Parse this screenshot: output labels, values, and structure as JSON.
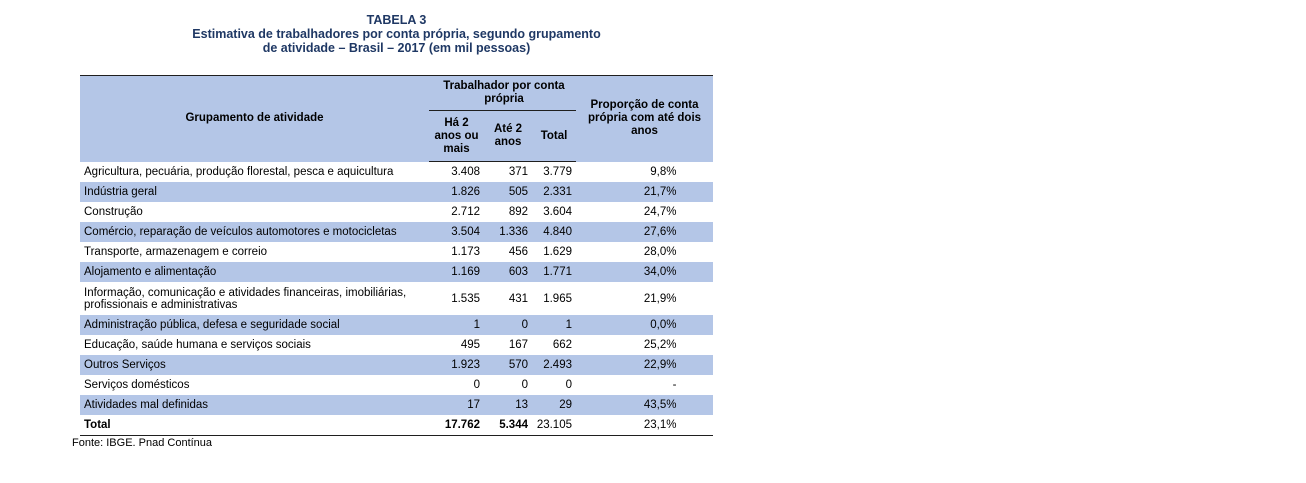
{
  "title": {
    "label": "TABELA 3",
    "line1": "Estimativa de trabalhadores por conta própria, segundo grupamento",
    "line2": "de atividade – Brasil – 2017 (em mil pessoas)"
  },
  "header": {
    "group_col": "Grupamento de atividade",
    "worker_group": "Trabalhador por conta própria",
    "sub_more2": "Há 2 anos ou mais",
    "sub_upto2": "Até 2 anos",
    "sub_total": "Total",
    "proportion": "Proporção de conta própria com até dois anos"
  },
  "rows": [
    {
      "activity": "Agricultura, pecuária, produção florestal, pesca e aquicultura",
      "more2": "3.408",
      "upto2": "371",
      "total": "3.779",
      "pct": "9,8%"
    },
    {
      "activity": "Indústria geral",
      "more2": "1.826",
      "upto2": "505",
      "total": "2.331",
      "pct": "21,7%"
    },
    {
      "activity": "Construção",
      "more2": "2.712",
      "upto2": "892",
      "total": "3.604",
      "pct": "24,7%"
    },
    {
      "activity": "Comércio, reparação de veículos automotores e motocicletas",
      "more2": "3.504",
      "upto2": "1.336",
      "total": "4.840",
      "pct": "27,6%"
    },
    {
      "activity": "Transporte, armazenagem e correio",
      "more2": "1.173",
      "upto2": "456",
      "total": "1.629",
      "pct": "28,0%"
    },
    {
      "activity": "Alojamento e alimentação",
      "more2": "1.169",
      "upto2": "603",
      "total": "1.771",
      "pct": "34,0%"
    },
    {
      "activity": "Informação, comunicação e atividades financeiras, imobiliárias, profissionais e administrativas",
      "more2": "1.535",
      "upto2": "431",
      "total": "1.965",
      "pct": "21,9%"
    },
    {
      "activity": "Administração pública, defesa e seguridade social",
      "more2": "1",
      "upto2": "0",
      "total": "1",
      "pct": "0,0%"
    },
    {
      "activity": "Educação, saúde humana e serviços sociais",
      "more2": "495",
      "upto2": "167",
      "total": "662",
      "pct": "25,2%"
    },
    {
      "activity": "Outros Serviços",
      "more2": "1.923",
      "upto2": "570",
      "total": "2.493",
      "pct": "22,9%"
    },
    {
      "activity": "Serviços domésticos",
      "more2": "0",
      "upto2": "0",
      "total": "0",
      "pct": "-"
    },
    {
      "activity": "Atividades mal definidas",
      "more2": "17",
      "upto2": "13",
      "total": "29",
      "pct": "43,5%"
    }
  ],
  "total_row": {
    "activity": "Total",
    "more2": "17.762",
    "upto2": "5.344",
    "total": "23.105",
    "pct": "23,1%"
  },
  "source": "Fonte: IBGE. Pnad Contínua",
  "colors": {
    "title": "#1f3864",
    "band": "#b4c6e7"
  }
}
